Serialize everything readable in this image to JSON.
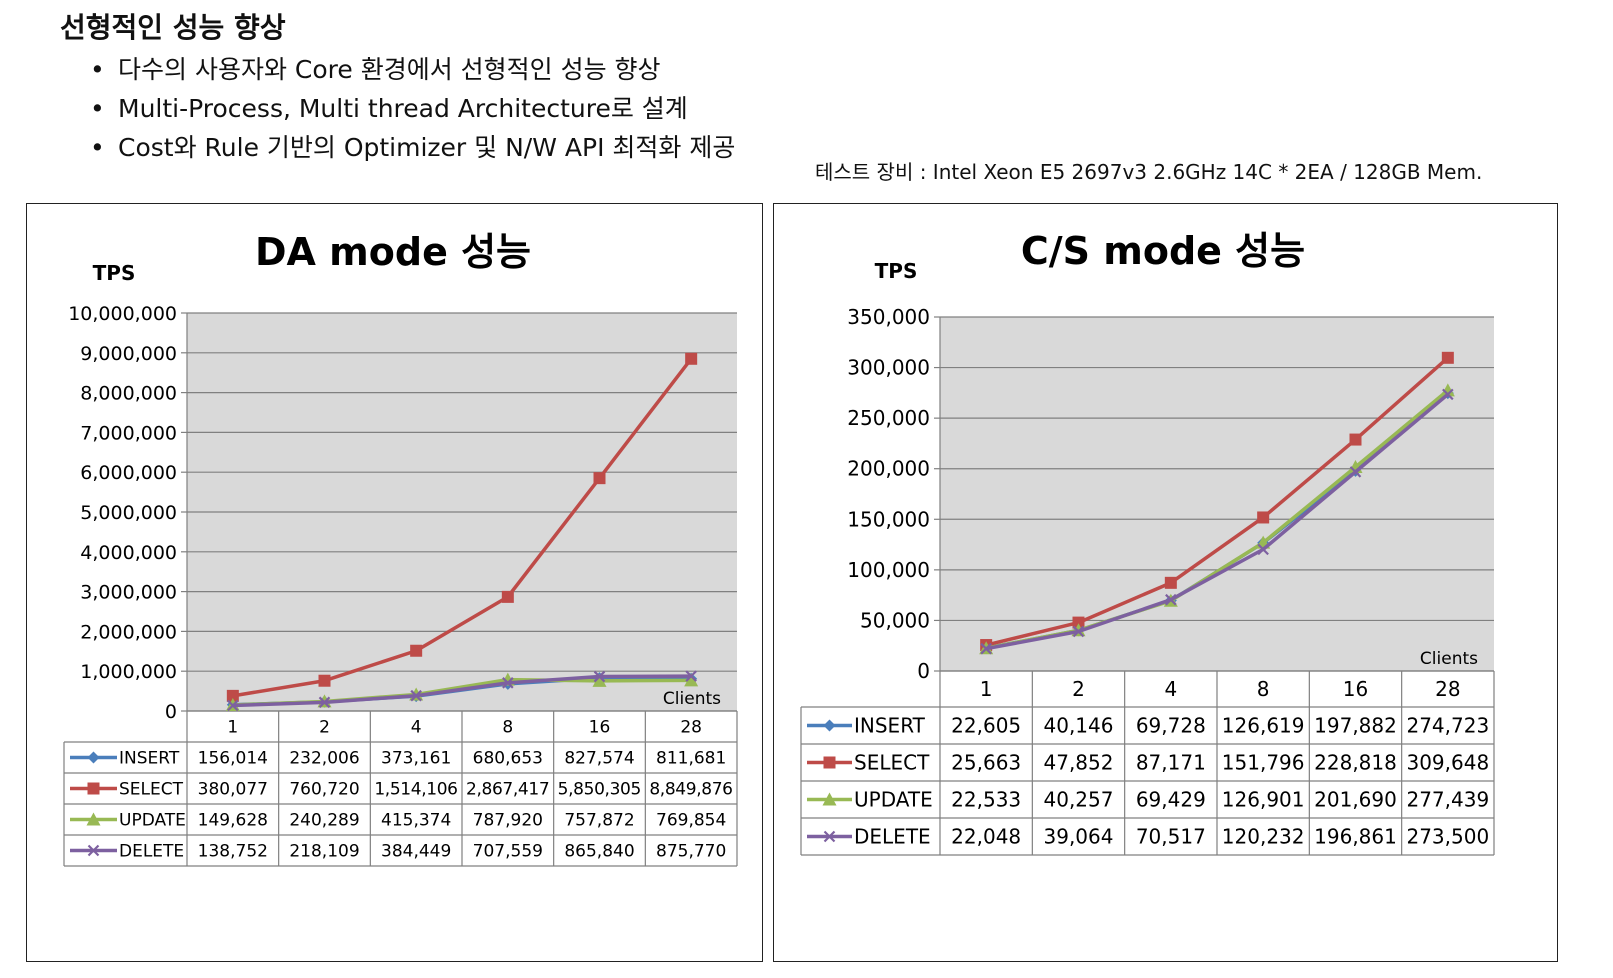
{
  "heading": "선형적인 성능 향상",
  "bullets": [
    "다수의 사용자와 Core 환경에서 선형적인 성능 향상",
    "Multi-Process, Multi thread Architecture로 설계",
    "Cost와 Rule 기반의 Optimizer 및 N/W API 최적화 제공"
  ],
  "test_equipment": "테스트 장비 :  Intel Xeon E5 2697v3 2.6GHz 14C * 2EA / 128GB Mem.",
  "colors": {
    "INSERT": "#4a7ebb",
    "SELECT": "#be4b48",
    "UPDATE": "#98b954",
    "DELETE": "#7d60a0",
    "plot_bg": "#d9d9d9"
  },
  "chart_data": [
    {
      "type": "line",
      "title": "DA mode 성능",
      "ylabel": "TPS",
      "xlabel": "Clients",
      "categories": [
        "1",
        "2",
        "4",
        "8",
        "16",
        "28"
      ],
      "ylim": [
        0,
        10000000
      ],
      "yticks": [
        "0",
        "1,000,000",
        "2,000,000",
        "3,000,000",
        "4,000,000",
        "5,000,000",
        "6,000,000",
        "7,000,000",
        "8,000,000",
        "9,000,000",
        "10,000,000"
      ],
      "grid": true,
      "legend": "data-table",
      "series": [
        {
          "name": "INSERT",
          "marker": "diamond",
          "values": [
            156014,
            232006,
            373161,
            680653,
            827574,
            811681
          ],
          "labels": [
            "156,014",
            "232,006",
            "373,161",
            "680,653",
            "827,574",
            "811,681"
          ]
        },
        {
          "name": "SELECT",
          "marker": "square",
          "values": [
            380077,
            760720,
            1514106,
            2867417,
            5850305,
            8849876
          ],
          "labels": [
            "380,077",
            "760,720",
            "1,514,106",
            "2,867,417",
            "5,850,305",
            "8,849,876"
          ]
        },
        {
          "name": "UPDATE",
          "marker": "triangle",
          "values": [
            149628,
            240289,
            415374,
            787920,
            757872,
            769854
          ],
          "labels": [
            "149,628",
            "240,289",
            "415,374",
            "787,920",
            "757,872",
            "769,854"
          ]
        },
        {
          "name": "DELETE",
          "marker": "x",
          "values": [
            138752,
            218109,
            384449,
            707559,
            865840,
            875770
          ],
          "labels": [
            "138,752",
            "218,109",
            "384,449",
            "707,559",
            "865,840",
            "875,770"
          ]
        }
      ]
    },
    {
      "type": "line",
      "title": "C/S mode 성능",
      "ylabel": "TPS",
      "xlabel": "Clients",
      "categories": [
        "1",
        "2",
        "4",
        "8",
        "16",
        "28"
      ],
      "ylim": [
        0,
        350000
      ],
      "yticks": [
        "0",
        "50,000",
        "100,000",
        "150,000",
        "200,000",
        "250,000",
        "300,000",
        "350,000"
      ],
      "grid": true,
      "legend": "data-table",
      "series": [
        {
          "name": "INSERT",
          "marker": "diamond",
          "values": [
            22605,
            40146,
            69728,
            126619,
            197882,
            274723
          ],
          "labels": [
            "22,605",
            "40,146",
            "69,728",
            "126,619",
            "197,882",
            "274,723"
          ]
        },
        {
          "name": "SELECT",
          "marker": "square",
          "values": [
            25663,
            47852,
            87171,
            151796,
            228818,
            309648
          ],
          "labels": [
            "25,663",
            "47,852",
            "87,171",
            "151,796",
            "228,818",
            "309,648"
          ]
        },
        {
          "name": "UPDATE",
          "marker": "triangle",
          "values": [
            22533,
            40257,
            69429,
            126901,
            201690,
            277439
          ],
          "labels": [
            "22,533",
            "40,257",
            "69,429",
            "126,901",
            "201,690",
            "277,439"
          ]
        },
        {
          "name": "DELETE",
          "marker": "x",
          "values": [
            22048,
            39064,
            70517,
            120232,
            196861,
            273500
          ],
          "labels": [
            "22,048",
            "39,064",
            "70,517",
            "120,232",
            "196,861",
            "273,500"
          ]
        }
      ]
    }
  ]
}
